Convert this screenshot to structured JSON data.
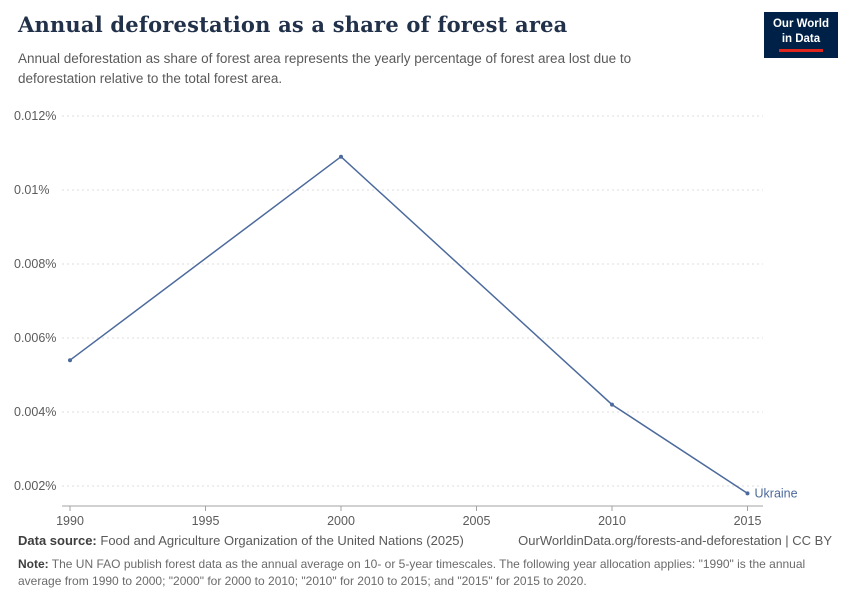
{
  "header": {
    "title": "Annual deforestation as a share of forest area",
    "subtitle": "Annual deforestation as share of forest area represents the yearly percentage of forest area lost due to deforestation relative to the total forest area.",
    "logo_line1": "Our World",
    "logo_line2": "in Data"
  },
  "chart_data": {
    "type": "line",
    "title": "Annual deforestation as a share of forest area",
    "unit": "%",
    "grid": "horizontal-dashed",
    "legend_position": "end-of-line",
    "x_range": [
      1990,
      2015
    ],
    "y_range": [
      0.002,
      0.012
    ],
    "x_ticks": [
      "1990",
      "1995",
      "2000",
      "2005",
      "2010",
      "2015"
    ],
    "y_ticks": [
      {
        "value": 0.002,
        "label": "0.002%"
      },
      {
        "value": 0.004,
        "label": "0.004%"
      },
      {
        "value": 0.006,
        "label": "0.006%"
      },
      {
        "value": 0.008,
        "label": "0.008%"
      },
      {
        "value": 0.01,
        "label": "0.01%"
      },
      {
        "value": 0.012,
        "label": "0.012%"
      }
    ],
    "series": [
      {
        "name": "Ukraine",
        "color": "#4c6a9c",
        "points": [
          {
            "x": 1990,
            "y": 0.0054
          },
          {
            "x": 2000,
            "y": 0.0109
          },
          {
            "x": 2010,
            "y": 0.0042
          },
          {
            "x": 2015,
            "y": 0.0018
          }
        ]
      }
    ]
  },
  "footer": {
    "source_label": "Data source:",
    "source_value": "Food and Agriculture Organization of the United Nations (2025)",
    "link_text": "OurWorldinData.org/forests-and-deforestation | CC BY",
    "note_label": "Note:",
    "note_text": "The UN FAO publish forest data as the annual average on 10- or 5-year timescales. The following year allocation applies: \"1990\" is the annual average from 1990 to 2000; \"2000\" for 2000 to 2010; \"2010\" for 2010 to 2015; and \"2015\" for 2015 to 2020."
  }
}
